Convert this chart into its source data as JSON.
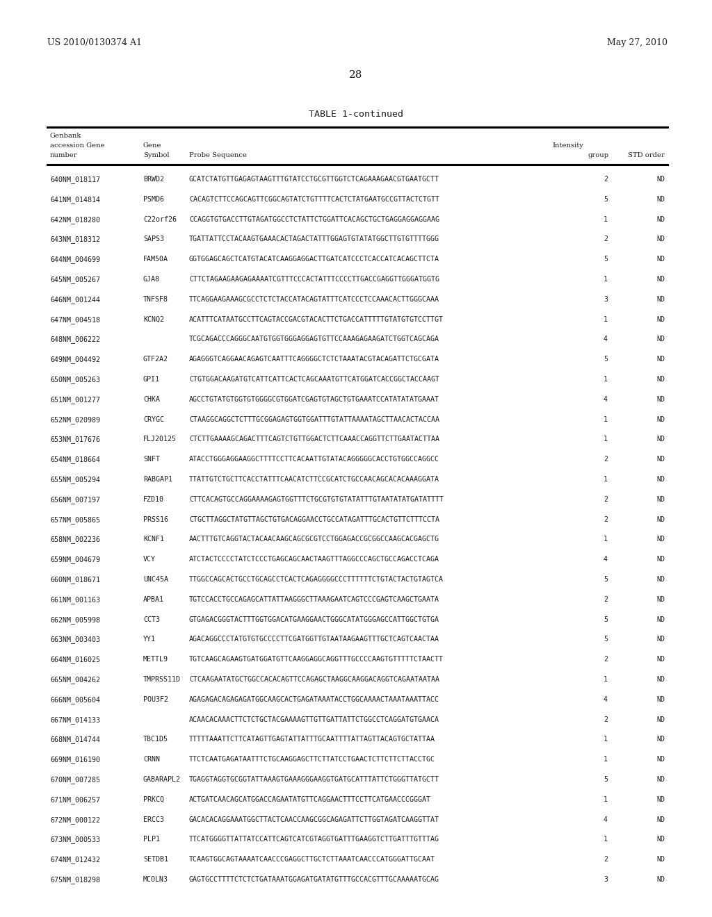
{
  "header_left": "US 2010/0130374 A1",
  "header_right": "May 27, 2010",
  "page_number": "28",
  "table_title": "TABLE 1-continued",
  "rows": [
    [
      "640NM_018117",
      "BRWD2",
      "GCATCTATGTTGAGAGTAAGTTTGTATCCTGCGTTGGTCTCAGAAAGAACGTGAATGCTT",
      "2",
      "ND"
    ],
    [
      "641NM_014814",
      "PSMD6",
      "CACAGTCTTCCAGCAGTTCGGCAGTATCTGTTTTCACTCTATGAATGCCGTTACTCTGTT",
      "5",
      "ND"
    ],
    [
      "642NM_018280",
      "C22orf26",
      "CCAGGTGTGACCTTGTAGATGGCCTCTATTCTGGATTCACAGCTGCTGAGGAGGAGGAAG",
      "1",
      "ND"
    ],
    [
      "643NM_018312",
      "SAPS3",
      "TGATTATTCCTACAAGTGAAACACTAGACTATTTGGAGTGTATATGGCTTGTGTTTTGGG",
      "2",
      "ND"
    ],
    [
      "644NM_004699",
      "FAM50A",
      "GGTGGAGCAGCTCATGTACATCAAGGAGGACTTGATCATCCCTCACCATCACAGCTTCTA",
      "5",
      "ND"
    ],
    [
      "645NM_005267",
      "GJA8",
      "CTTCTAGAAGAAGAGAAAATCGTTTCCCACTATTTCCCCTTGACCGAGGTTGGGATGGTG",
      "1",
      "ND"
    ],
    [
      "646NM_001244",
      "TNFSF8",
      "TTCAGGAAGAAAGCGCCTCTCTACCATACAGTATTTCATCCCTCCAAACACTTGGGCAAA",
      "3",
      "ND"
    ],
    [
      "647NM_004518",
      "KCNQ2",
      "ACATTTCATAATGCCTTCAGTACCGACGTACACTTCTGACCATTTTTGTATGTGTCCTTGT",
      "1",
      "ND"
    ],
    [
      "648NM_006222",
      "",
      "TCGCAGACCCAGGGCAATGTGGTGGGAGGAGTGTTCCAAAGAGAAGATCTGGTCAGCAGA",
      "4",
      "ND"
    ],
    [
      "649NM_004492",
      "GTF2A2",
      "AGAGGGTCAGGAACAGAGTCAATTTCAGGGGCTCTCTAAATACGTACAGATTCTGCGATA",
      "5",
      "ND"
    ],
    [
      "650NM_005263",
      "GPI1",
      "CTGTGGACAAGATGTCATTCATTCACTCAGCAAATGTTCATGGATCACCGGCTACCAAGT",
      "1",
      "ND"
    ],
    [
      "651NM_001277",
      "CHKA",
      "AGCCTGTATGTGGTGTGGGGCGTGGATCGAGTGTAGCTGTGAAATCCATATATATGAAAT",
      "4",
      "ND"
    ],
    [
      "652NM_020989",
      "CRYGC",
      "CTAAGGCAGGCTCTTTGCGGAGAGTGGTGGATTTGTATTAAAATAGCTTAACACTACCAA",
      "1",
      "ND"
    ],
    [
      "653NM_017676",
      "FLJ20125",
      "CTCTTGAAAAGCAGACTTTCAGTCTGTTGGACTCTTCAAACCAGGTTCTTGAATACTTAA",
      "1",
      "ND"
    ],
    [
      "654NM_018664",
      "SNFT",
      "ATACCTGGGAGGAAGGCTTTTCCTTCACAATTGTATACAGGGGGCACCTGTGGCCAGGCC",
      "2",
      "ND"
    ],
    [
      "655NM_005294",
      "RABGAP1",
      "TTATTGTCTGCTTCACCTATTTCAACATCTTCCGCATCTGCCAACAGCACACAAAGGATA",
      "1",
      "ND"
    ],
    [
      "656NM_007197",
      "FZD10",
      "CTTCACAGTGCCAGGAAAAGAGTGGTTTCTGCGTGTGTATATTTGTAATATATGATATTTT",
      "2",
      "ND"
    ],
    [
      "657NM_005865",
      "PRSS16",
      "CTGCTTAGGCTATGTTAGCTGTGACAGGAACCTGCCATAGATTTGCACTGTTCTTTCCTA",
      "2",
      "ND"
    ],
    [
      "658NM_002236",
      "KCNF1",
      "AACTTTGTCAGGTACTACAACAAGCAGCGCGTCCTGGAGACCGCGGCCAAGCACGAGCTG",
      "1",
      "ND"
    ],
    [
      "659NM_004679",
      "VCY",
      "ATCTACTCCCCTATCTCCCTGAGCAGCAACTAAGTTTAGGCCCAGCTGCCAGACCTCAGA",
      "4",
      "ND"
    ],
    [
      "660NM_018671",
      "UNC45A",
      "TTGGCCAGCACTGCCTGCAGCCTCACTCAGAGGGGCCCTTTTTTCTGTACTACTGTAGTCA",
      "5",
      "ND"
    ],
    [
      "661NM_001163",
      "APBA1",
      "TGTCCACCTGCCAGAGCATTATTAAGGGCTTAAAGAATCAGTCCCGAGTCAAGCTGAATA",
      "2",
      "ND"
    ],
    [
      "662NM_005998",
      "CCT3",
      "GTGAGACGGGTACTTTGGTGGACATGAAGGAACTGGGCATATGGGAGCCATTGGCTGTGA",
      "5",
      "ND"
    ],
    [
      "663NM_003403",
      "YY1",
      "AGACAGGCCCTATGTGTGCCCCTTCGATGGTTGTAATAAGAAGTTTGCTCAGTCAACTAA",
      "5",
      "ND"
    ],
    [
      "664NM_016025",
      "METTL9",
      "TGTCAAGCAGAAGTGATGGATGTTCAAGGAGGCAGGTTTGCCCCAAGTGTTTTTCTAACTT",
      "2",
      "ND"
    ],
    [
      "665NM_004262",
      "TMPRSS11D",
      "CTCAAGAATATGCTGGCCACACAGTTCCAGAGCTAAGGCAAGGACAGGTCAGAATAATAA",
      "1",
      "ND"
    ],
    [
      "666NM_005604",
      "POU3F2",
      "AGAGAGACAGAGAGATGGCAAGCACTGAGATAAATACCTGGCAAAACTAAATAAATTACC",
      "4",
      "ND"
    ],
    [
      "667NM_014133",
      "",
      "ACAACACAAACTTCTCTGCTACGAAAAGTTGTTGATTATTCTGGCCTCAGGATGTGAACA",
      "2",
      "ND"
    ],
    [
      "668NM_014744",
      "TBC1D5",
      "TTTTTAAATTCTTCATAGTTGAGTATTATTTGCAATTTTATTAGTTACAGTGCTATTAA",
      "1",
      "ND"
    ],
    [
      "669NM_016190",
      "CRNN",
      "TTCTCAATGAGATAATTTCTGCAAGGAGCTTCTTATCCTGAACTCTTCTTCTTACCTGC",
      "1",
      "ND"
    ],
    [
      "670NM_007285",
      "GABARAPL2",
      "TGAGGTAGGTGCGGTATTAAAGTGAAAGGGAAGGTGATGCATTTATTCTGGGTTATGCTT",
      "5",
      "ND"
    ],
    [
      "671NM_006257",
      "PRKCQ",
      "ACTGATCAACAGCATGGACCAGAATATGTTCAGGAACTTTCCTTCATGAACCCGGGAT",
      "1",
      "ND"
    ],
    [
      "672NM_000122",
      "ERCC3",
      "GACACACAGGAAATGGCTTACTCAACCAAGCGGCAGAGATTCTTGGTAGATCAAGGTTAT",
      "4",
      "ND"
    ],
    [
      "673NM_000533",
      "PLP1",
      "TTCATGGGGTTATTATCCATTCAGTCATCGTAGGTGATTTGAAGGTCTTGATTTGTTTAG",
      "1",
      "ND"
    ],
    [
      "674NM_012432",
      "SETDB1",
      "TCAAGTGGCAGTAAAATCAACCCGAGGCTTGCTCTTAAATCAACCCATGGGATTGCAAT",
      "2",
      "ND"
    ],
    [
      "675NM_018298",
      "MCOLN3",
      "GAGTGCCTTTTCTCTCTGATAAATGGAGATGATATGTTTGCCACGTTTGCAAAAATGCAG",
      "3",
      "ND"
    ]
  ],
  "bg_color": "#ffffff",
  "text_color": "#1a1a1a",
  "line_color": "#000000"
}
